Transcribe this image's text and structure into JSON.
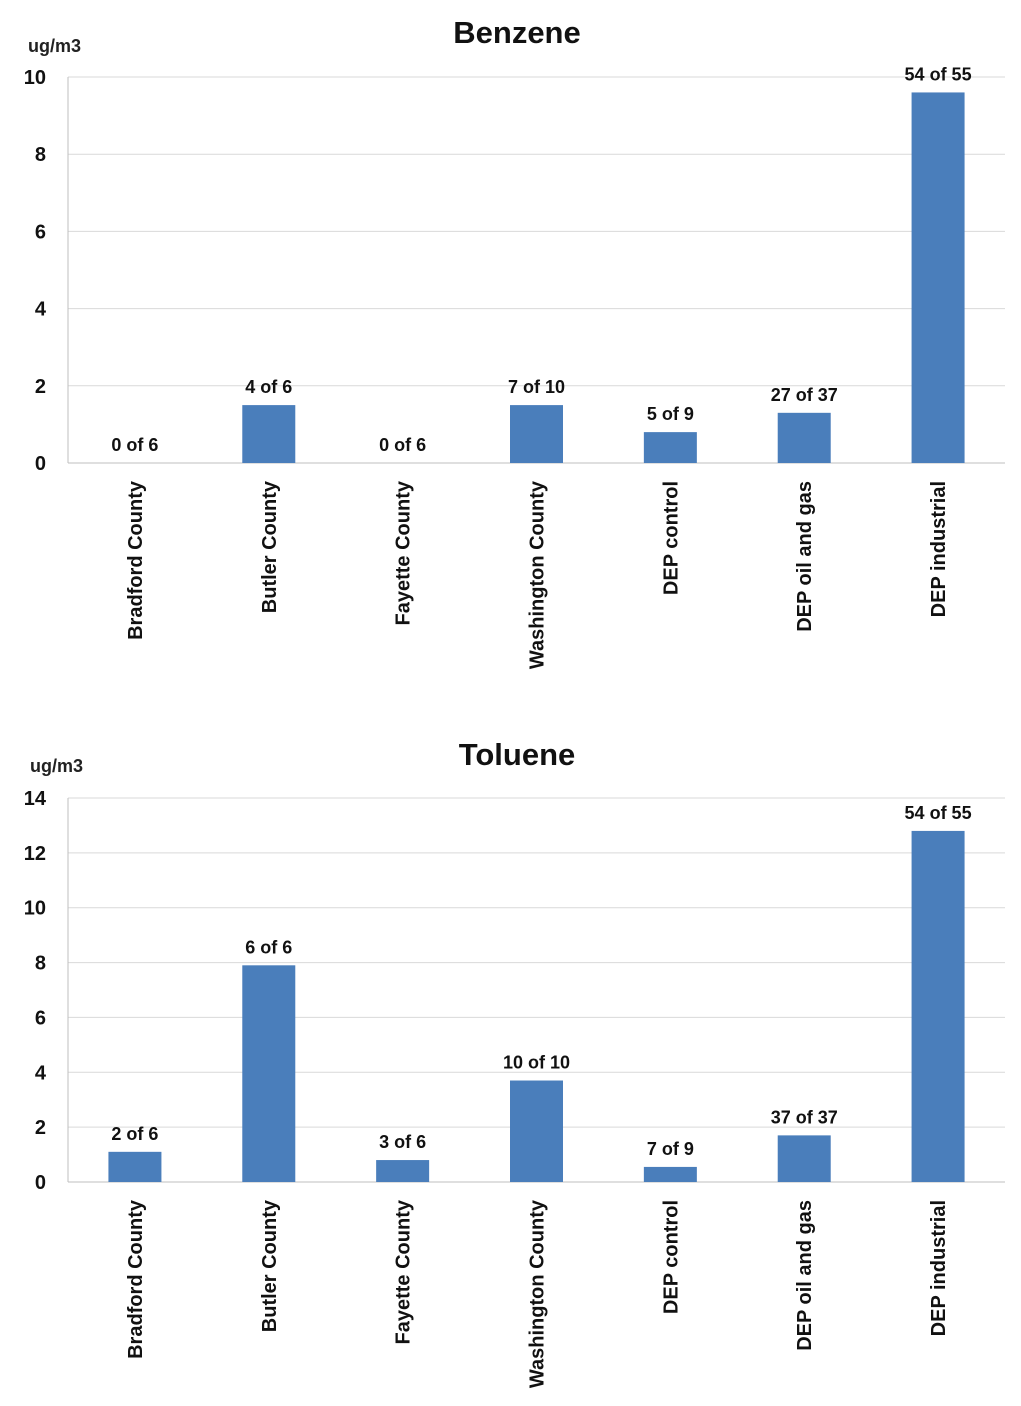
{
  "chart_data": [
    {
      "type": "bar",
      "title": "Benzene",
      "ylabel": "ug/m3",
      "ylim": [
        0,
        10
      ],
      "yticks": [
        "0",
        "2",
        "4",
        "6",
        "8",
        "10"
      ],
      "grid": true,
      "categories": [
        "Bradford County",
        "Butler County",
        "Fayette County",
        "Washington County",
        "DEP control",
        "DEP oil and gas",
        "DEP industrial"
      ],
      "series": [
        {
          "values": [
            0,
            1.5,
            0,
            1.5,
            0.8,
            1.3,
            9.6
          ],
          "data_labels": [
            "0 of 6",
            "4 of 6",
            "0 of 6",
            "7 of 10",
            "5 of 9",
            "27 of 37",
            "54 of 55"
          ],
          "color": "#4a7ebb"
        }
      ]
    },
    {
      "type": "bar",
      "title": "Toluene",
      "ylabel": "ug/m3",
      "ylim": [
        0,
        14
      ],
      "yticks": [
        "0",
        "2",
        "4",
        "6",
        "8",
        "10",
        "12",
        "14"
      ],
      "grid": true,
      "categories": [
        "Bradford County",
        "Butler County",
        "Fayette County",
        "Washington County",
        "DEP control",
        "DEP oil and gas",
        "DEP industrial"
      ],
      "series": [
        {
          "values": [
            1.1,
            7.9,
            0.8,
            3.7,
            0.55,
            1.7,
            12.8
          ],
          "data_labels": [
            "2 of 6",
            "6 of 6",
            "3 of 6",
            "10 of 10",
            "7 of 9",
            "37 of 37",
            "54 of 55"
          ],
          "color": "#4a7ebb"
        }
      ]
    }
  ]
}
